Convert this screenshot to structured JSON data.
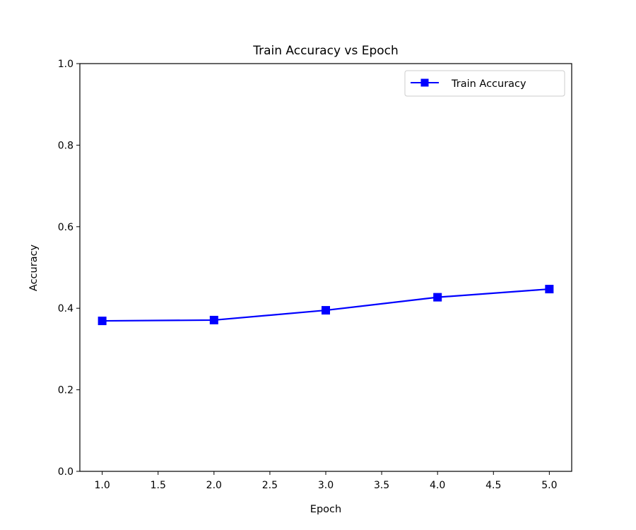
{
  "chart_data": {
    "type": "line",
    "title": "Train Accuracy vs Epoch",
    "xlabel": "Epoch",
    "ylabel": "Accuracy",
    "xlim": [
      0.8,
      5.2
    ],
    "ylim": [
      0.0,
      1.0
    ],
    "xticks": [
      "1.0",
      "1.5",
      "2.0",
      "2.5",
      "3.0",
      "3.5",
      "4.0",
      "4.5",
      "5.0"
    ],
    "yticks": [
      "0.0",
      "0.2",
      "0.4",
      "0.6",
      "0.8",
      "1.0"
    ],
    "grid": false,
    "legend_position": "top-right",
    "series": [
      {
        "name": "Train Accuracy",
        "color": "#0000ff",
        "marker": "square",
        "x": [
          1,
          2,
          3,
          4,
          5
        ],
        "y": [
          0.369,
          0.371,
          0.395,
          0.427,
          0.447
        ]
      }
    ]
  }
}
